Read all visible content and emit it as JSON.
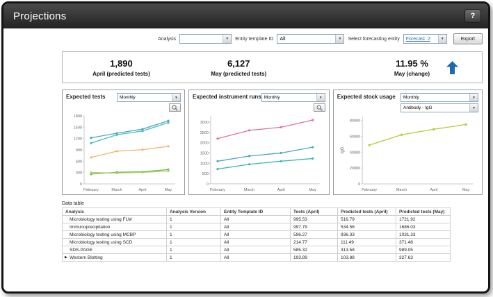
{
  "window": {
    "title": "Projections",
    "help_label": "?"
  },
  "toolbar": {
    "analysis": {
      "label": "Analysis",
      "value": ""
    },
    "entity_template": {
      "label": "Entity template ID",
      "value": "All"
    },
    "forecasting": {
      "label": "Select forecasting entity",
      "value": "Forecast_2"
    },
    "export_label": "Export"
  },
  "summary": {
    "stats": [
      {
        "value": "1,890",
        "label": "April (predicted tests)"
      },
      {
        "value": "6,127",
        "label": "May (predicted tests)"
      },
      {
        "value": "11.95 %",
        "label": "May (change)",
        "arrow": "up",
        "arrow_color": "#1d6ab0"
      }
    ]
  },
  "chart_data": [
    {
      "type": "line",
      "title": "Expected tests",
      "dropdowns": [
        "Monthly"
      ],
      "magnifier": true,
      "categories": [
        "February",
        "March",
        "April",
        "May"
      ],
      "ylim": [
        0,
        1800
      ],
      "yticks": [
        0,
        300,
        600,
        900,
        1200,
        1500,
        1800
      ],
      "series": [
        {
          "name": "tests-series-1",
          "color": "#4aa6c9",
          "values": [
            1220,
            1340,
            1450,
            1670
          ]
        },
        {
          "name": "tests-series-2",
          "color": "#45bdb4",
          "values": [
            1080,
            1300,
            1400,
            1620
          ]
        },
        {
          "name": "tests-series-3",
          "color": "#f2b36e",
          "values": [
            700,
            865,
            905,
            995
          ]
        },
        {
          "name": "tests-series-4",
          "color": "#79b84e",
          "values": [
            260,
            310,
            320,
            380
          ]
        },
        {
          "name": "tests-series-5",
          "color": "#a8cf6a",
          "values": [
            300,
            288,
            305,
            340
          ]
        }
      ]
    },
    {
      "type": "line",
      "title": "Expected instrument runs",
      "dropdowns": [
        "Monthly"
      ],
      "magnifier": true,
      "categories": [
        "February",
        "March",
        "April",
        "May"
      ],
      "ylim": [
        0,
        3300
      ],
      "yticks": [
        0,
        500,
        1000,
        1500,
        2000,
        2500,
        3000
      ],
      "series": [
        {
          "name": "runs-series-1",
          "color": "#e4728e",
          "values": [
            2200,
            2600,
            2750,
            3100
          ]
        },
        {
          "name": "runs-series-2",
          "color": "#4aa6c9",
          "values": [
            1100,
            1350,
            1500,
            1780
          ]
        },
        {
          "name": "runs-series-3",
          "color": "#3eb8ae",
          "values": [
            720,
            950,
            1100,
            1230
          ]
        }
      ]
    },
    {
      "type": "line",
      "title": "Expected stock usage",
      "dropdowns": [
        "Monthly",
        "Antibody - IgG"
      ],
      "magnifier": false,
      "ylabel": "IgG",
      "categories": [
        "February",
        "March",
        "April",
        "May"
      ],
      "ylim": [
        0,
        85000
      ],
      "yticks": [
        0,
        20000,
        40000,
        60000,
        80000
      ],
      "series": [
        {
          "name": "stock-series-1",
          "color": "#b7c832",
          "values": [
            49000,
            62000,
            69000,
            75000
          ]
        }
      ]
    }
  ],
  "data_table": {
    "label": "Data table",
    "columns": [
      "Analysis",
      "Analysis Version",
      "Entity Template ID",
      "Tests (April)",
      "Predicted tests (April)",
      "Predicted tests (May)"
    ],
    "rows": [
      {
        "expander": false,
        "cells": [
          "Microbiology testing using FLM",
          "1",
          "All",
          "995.53",
          "516.79",
          "1721.92"
        ]
      },
      {
        "expander": false,
        "cells": [
          "Immunoprecipitation",
          "1",
          "All",
          "997.79",
          "534.56",
          "1686.03"
        ]
      },
      {
        "expander": false,
        "cells": [
          "Microbiology testing using MCBP",
          "1",
          "All",
          "596.27",
          "936.33",
          "1031.33"
        ]
      },
      {
        "expander": false,
        "cells": [
          "Microbiology testing using SCD",
          "1",
          "All",
          "214.77",
          "111.49",
          "371.48"
        ]
      },
      {
        "expander": false,
        "cells": [
          "SDS-PAGE",
          "1",
          "All",
          "585.32",
          "313.58",
          "989.05"
        ]
      },
      {
        "expander": true,
        "cells": [
          "Western Blotting",
          "1",
          "All",
          "193.89",
          "103.88",
          "327.63"
        ]
      }
    ]
  }
}
